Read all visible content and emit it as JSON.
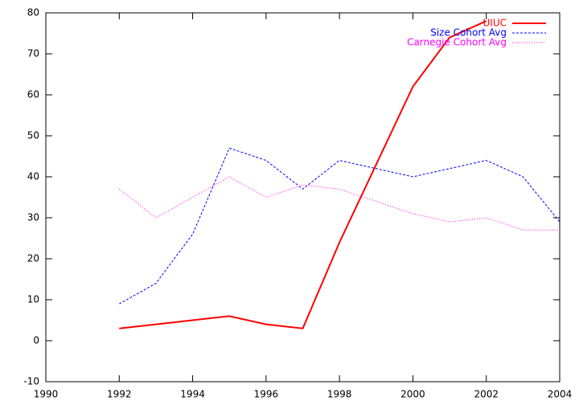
{
  "chart_data": {
    "type": "line",
    "x": [
      1992,
      1993,
      1994,
      1995,
      1996,
      1997,
      1998,
      1999,
      2000,
      2001,
      2002,
      2003,
      2004
    ],
    "series": [
      {
        "name": "UIUC",
        "color": "#ff0000",
        "values": [
          3,
          4,
          5,
          6,
          4,
          3,
          24,
          43,
          62,
          74,
          78,
          null,
          null
        ]
      },
      {
        "name": "Size Cohort Avg",
        "color": "#0000ff",
        "values": [
          9,
          14,
          26,
          47,
          44,
          37,
          44,
          42,
          40,
          42,
          44,
          40,
          29
        ]
      },
      {
        "name": "Carnegie Cohort Avg",
        "color": "#ff00ff",
        "values": [
          37,
          30,
          35,
          40,
          35,
          38,
          37,
          34,
          31,
          29,
          30,
          27,
          27
        ]
      }
    ],
    "xlim": [
      1990,
      2004
    ],
    "xticks": [
      1990,
      1992,
      1994,
      1996,
      1998,
      2000,
      2002,
      2004
    ],
    "ylim": [
      -10,
      80
    ],
    "yticks": [
      -10,
      0,
      10,
      20,
      30,
      40,
      50,
      60,
      70,
      80
    ],
    "legend": "top-right",
    "grid": false
  }
}
